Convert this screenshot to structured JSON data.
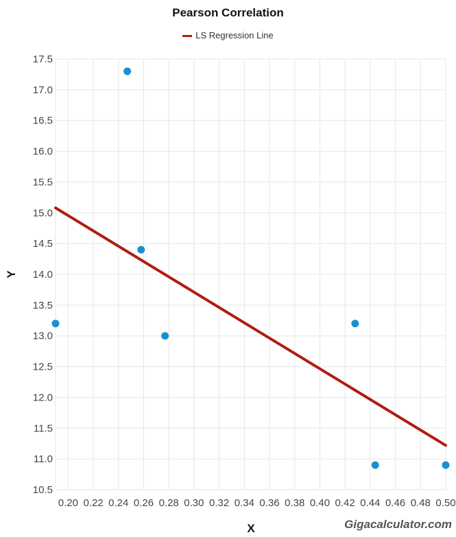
{
  "chart_data": {
    "type": "scatter",
    "title": "Pearson Correlation",
    "xlabel": "X",
    "ylabel": "Y",
    "xlim": [
      0.19,
      0.5
    ],
    "ylim": [
      10.5,
      17.5
    ],
    "x_ticks": [
      "0.20",
      "0.22",
      "0.24",
      "0.26",
      "0.28",
      "0.30",
      "0.32",
      "0.34",
      "0.36",
      "0.38",
      "0.40",
      "0.42",
      "0.44",
      "0.46",
      "0.48",
      "0.50"
    ],
    "y_ticks": [
      "10.5",
      "11.0",
      "11.5",
      "12.0",
      "12.5",
      "13.0",
      "13.5",
      "14.0",
      "14.5",
      "15.0",
      "15.5",
      "16.0",
      "16.5",
      "17.0",
      "17.5"
    ],
    "grid": true,
    "legend_position": "top",
    "series": [
      {
        "type": "scatter",
        "color": "#1a8fd0",
        "points": [
          {
            "x": 0.19,
            "y": 13.2
          },
          {
            "x": 0.247,
            "y": 17.3
          },
          {
            "x": 0.258,
            "y": 14.4
          },
          {
            "x": 0.277,
            "y": 13.0
          },
          {
            "x": 0.428,
            "y": 13.2
          },
          {
            "x": 0.444,
            "y": 10.9
          },
          {
            "x": 0.5,
            "y": 10.9
          }
        ]
      },
      {
        "name": "LS Regression Line",
        "type": "line",
        "color": "#b01c12",
        "points": [
          {
            "x": 0.19,
            "y": 15.08
          },
          {
            "x": 0.5,
            "y": 11.22
          }
        ]
      }
    ]
  },
  "watermark": "Gigacalculator.com"
}
